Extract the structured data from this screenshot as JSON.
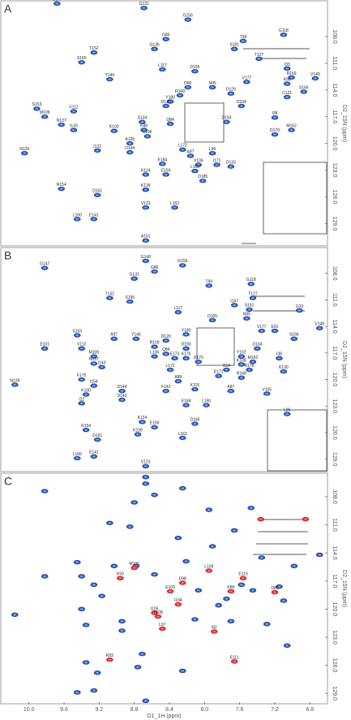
{
  "chart_data": [
    {
      "type": "scatter",
      "panel": "A",
      "ylabel": "D2_15N (ppm)",
      "xlim": [
        10.32,
        6.6
      ],
      "ylim": [
        103.9,
        131.6
      ],
      "yticks": [
        {
          "value": 108,
          "label": "108.0"
        },
        {
          "value": 111,
          "label": "111.0"
        },
        {
          "value": 114,
          "label": "114.0"
        },
        {
          "value": 117,
          "label": "117.0"
        },
        {
          "value": 120,
          "label": "120.0"
        },
        {
          "value": 123,
          "label": "123.0"
        },
        {
          "value": 126,
          "label": "126.0"
        },
        {
          "value": 129,
          "label": "129.0"
        }
      ],
      "series": [
        {
          "color": "#2b47b0",
          "x": [
            9.68,
            8.69,
            8.19,
            7.1,
            7.56,
            8.44,
            7.66,
            8.57,
            9.26,
            9.4,
            7.38,
            8.48,
            9.08,
            8.11,
            7.06,
            7.52,
            6.74,
            7.01,
            8.28,
            8.19,
            7.91,
            7.7,
            7.06,
            6.87,
            7.06,
            8.39,
            8.44,
            9.82,
            9.91,
            9.49,
            9.63,
            9.49,
            9.03,
            9.22,
            8.71,
            8.69,
            8.65,
            8.39,
            7.2,
            7.01,
            7.2,
            7.58,
            7.75,
            8.85,
            8.85,
            8.25,
            8.16,
            8.48,
            8.07,
            7.91,
            7.86,
            8.11,
            7.7,
            8.67,
            8.44,
            8.02,
            8.67,
            9.22,
            9.63,
            9.45,
            9.26,
            8.67,
            8.34,
            8.67,
            10.05
          ],
          "y": [
            104.3,
            104.8,
            106.1,
            107.8,
            108.5,
            108.3,
            109.4,
            109.4,
            109.8,
            110.9,
            110.5,
            111.7,
            112.8,
            111.9,
            111.6,
            113.1,
            112.7,
            112.6,
            114.6,
            113.7,
            113.7,
            114.4,
            113.3,
            114.2,
            114.8,
            115.3,
            115.8,
            117.0,
            116.1,
            116.4,
            117.9,
            118.5,
            118.6,
            120.8,
            117.6,
            118.5,
            119.2,
            117.8,
            117.1,
            118.5,
            119.0,
            115.8,
            117.6,
            120.0,
            121.0,
            120.7,
            121.4,
            122.3,
            122.4,
            121.1,
            122.4,
            123.1,
            122.6,
            123.5,
            123.5,
            124.2,
            125.2,
            125.8,
            125.1,
            128.5,
            128.5,
            127.2,
            127.2,
            130.9,
            121.1
          ],
          "labels": [
            "G147",
            "G131",
            "G156",
            "G118",
            "T99",
            "G86",
            "S181",
            "G136",
            "T152",
            "S165",
            "T127",
            "L117",
            "Y146",
            "D155",
            "I33",
            "V177",
            "V149",
            "R169",
            "R168",
            "D90",
            "N95",
            "D129",
            "K98",
            "S166",
            "C121",
            "Y180",
            "D120",
            "M109",
            "S153",
            "V112",
            "N137",
            "I143",
            "K100",
            "I122",
            "S134",
            "K88",
            "L106",
            "Q84",
            "I38",
            "M162",
            "D170",
            "D104",
            "D193",
            "A128",
            "D144",
            "L172",
            "A97",
            "E184",
            "V105",
            "L96",
            "I171",
            "L150",
            "D133",
            "K124",
            "E159",
            "D185",
            "K139",
            "D161",
            "R154",
            "L160",
            "E141",
            "V123",
            "L162",
            "A151",
            "N126"
          ]
        }
      ]
    },
    {
      "type": "scatter",
      "panel": "B",
      "ylabel": "D2_15N (ppm)",
      "xlim": [
        10.32,
        6.6
      ],
      "ylim": [
        105.0,
        130.5
      ],
      "yticks": [
        {
          "value": 108,
          "label": "108.0"
        },
        {
          "value": 111,
          "label": "111.0"
        },
        {
          "value": 114,
          "label": "114.0"
        },
        {
          "value": 117,
          "label": "117.0"
        },
        {
          "value": 120,
          "label": "120.0"
        },
        {
          "value": 123,
          "label": "123.0"
        },
        {
          "value": 126,
          "label": "126.0"
        },
        {
          "value": 129,
          "label": "129.0"
        }
      ],
      "series": [
        {
          "color": "#2b47b0",
          "x": [
            9.82,
            8.8,
            8.67,
            8.57,
            8.25,
            7.95,
            7.47,
            9.08,
            8.85,
            7.45,
            7.66,
            7.49,
            6.92,
            8.3,
            7.91,
            7.52,
            7.35,
            7.2,
            6.98,
            6.69,
            9.45,
            9.03,
            8.78,
            9.82,
            9.4,
            9.26,
            9.26,
            8.57,
            8.44,
            8.21,
            8.44,
            8.21,
            7.4,
            7.58,
            7.15,
            7.1,
            7.45,
            7.58,
            7.49,
            7.75,
            7.84,
            8.07,
            7.58,
            8.21,
            8.34,
            8.57,
            9.17,
            8.39,
            10.16,
            9.4,
            9.26,
            9.35,
            9.4,
            8.94,
            8.94,
            8.3,
            8.44,
            8.11,
            7.7,
            7.29,
            7.06,
            8.21,
            7.98,
            9.35,
            9.22,
            8.71,
            8.57,
            8.76,
            8.11,
            8.25,
            9.45,
            9.26,
            8.67
          ],
          "y": [
            107.4,
            108.6,
            106.6,
            107.8,
            107.1,
            109.4,
            109.2,
            110.8,
            111.2,
            110.8,
            111.6,
            112.1,
            112.2,
            112.4,
            113.3,
            113.1,
            114.5,
            114.5,
            115.4,
            114.2,
            115.0,
            115.4,
            115.4,
            116.5,
            116.5,
            117.4,
            118.2,
            116.3,
            115.6,
            114.9,
            117.1,
            116.5,
            116.5,
            117.4,
            117.6,
            119.1,
            118.0,
            118.3,
            118.9,
            118.9,
            119.6,
            118.0,
            119.8,
            117.6,
            117.6,
            117.4,
            118.6,
            118.9,
            120.6,
            120.0,
            120.7,
            121.7,
            122.7,
            121.3,
            122.3,
            120.2,
            121.3,
            121.1,
            121.3,
            121.6,
            123.9,
            122.9,
            122.9,
            125.7,
            126.8,
            124.8,
            125.4,
            126.2,
            125.0,
            126.6,
            128.9,
            128.7,
            129.8
          ],
          "labels": [
            "G147",
            "G131",
            "G148",
            "G86",
            "G156",
            "T99",
            "G118",
            "T152",
            "S195",
            "T127",
            "I167",
            "S181",
            "I133",
            "L117",
            "D155",
            "N95",
            "V177",
            "E91",
            "S166",
            "V149",
            "S153",
            "A97",
            "Y146",
            "E101",
            "V112",
            "M109",
            "N137",
            "R109",
            "D120",
            "Y180",
            "Q84",
            "D193",
            "D104",
            "Y102",
            "I38",
            "K130",
            "M162",
            "K108",
            "R178",
            "I114",
            "E171",
            "D170",
            "R168",
            "K176",
            "E173",
            "L106",
            "I143",
            "L172",
            "N128",
            "F175",
            "I154",
            "K100",
            "I22",
            "D144",
            "D142",
            "A89",
            "F142",
            "K115",
            "A87",
            "V105",
            "L96",
            "E184",
            "L190",
            "R154",
            "D161",
            "K124",
            "E159",
            "K139",
            "D185",
            "L162",
            "L160",
            "E141",
            "V123"
          ]
        }
      ]
    },
    {
      "type": "scatter",
      "panel": "C",
      "ylabel": "D2_15N (ppm)",
      "xlabel": "D1_1H (ppm)",
      "xlim": [
        10.32,
        6.6
      ],
      "ylim": [
        105.4,
        130.2
      ],
      "xticks": [
        {
          "value": 10,
          "label": "10.0"
        },
        9.6,
        9.2,
        8.8,
        8.4,
        {
          "value": 8,
          "label": "8.0"
        },
        7.6,
        7.2,
        6.8
      ],
      "yticks": [
        {
          "value": 108,
          "label": "108.0"
        },
        {
          "value": 111,
          "label": "111.0"
        },
        {
          "value": 114,
          "label": "114.0"
        },
        {
          "value": 117,
          "label": "117.0"
        },
        {
          "value": 120,
          "label": "120.0"
        },
        {
          "value": 123,
          "label": "123.0"
        },
        {
          "value": 126,
          "label": "126.0"
        },
        {
          "value": 129,
          "label": "129.0"
        }
      ],
      "series": [
        {
          "color": "#2b2f9a",
          "x": [
            9.82,
            8.8,
            8.67,
            8.57,
            8.25,
            7.95,
            7.47,
            9.08,
            8.85,
            7.66,
            8.3,
            7.91,
            7.35,
            6.98,
            6.69,
            9.45,
            9.03,
            8.78,
            9.82,
            9.4,
            9.26,
            8.57,
            8.21,
            7.58,
            7.15,
            7.1,
            7.45,
            7.75,
            7.84,
            8.07,
            9.17,
            10.16,
            9.4,
            9.35,
            8.94,
            8.94,
            8.11,
            7.7,
            7.29,
            7.06,
            9.35,
            9.22,
            8.71,
            8.76,
            8.25,
            9.45,
            9.26,
            8.67,
            8.67
          ],
          "y": [
            107.4,
            108.6,
            106.6,
            107.8,
            107.1,
            109.4,
            109.2,
            110.8,
            111.2,
            111.6,
            112.4,
            113.3,
            114.5,
            115.4,
            114.2,
            115.0,
            115.4,
            115.4,
            116.5,
            116.5,
            117.4,
            116.3,
            114.9,
            117.4,
            117.6,
            119.1,
            118.0,
            118.9,
            119.6,
            118.0,
            118.6,
            120.6,
            120.0,
            121.7,
            121.3,
            122.3,
            121.1,
            121.3,
            121.6,
            123.9,
            125.7,
            126.8,
            124.8,
            126.2,
            126.6,
            128.9,
            128.7,
            129.8,
            105.9
          ]
        },
        {
          "color": "#d81e1e",
          "x": [
            6.85,
            7.36,
            8.8,
            8.96,
            7.56,
            7.95,
            7.2,
            8.39,
            8.25,
            7.7,
            8.3,
            8.57,
            8.53,
            8.48,
            7.89,
            9.08,
            7.66
          ],
          "y": [
            110.4,
            110.4,
            115.6,
            116.7,
            116.7,
            115.9,
            118.2,
            118.1,
            117.2,
            118.1,
            119.5,
            120.4,
            120.8,
            122.1,
            122.4,
            125.4,
            125.6
          ],
          "labels": [
            null,
            null,
            "M106",
            "K93",
            "E110",
            "L109",
            "D86",
            "E103",
            "D98",
            "K89",
            "I104",
            "I105",
            "Y108",
            "L97",
            "I92",
            "K83",
            "E111"
          ]
        }
      ]
    }
  ]
}
